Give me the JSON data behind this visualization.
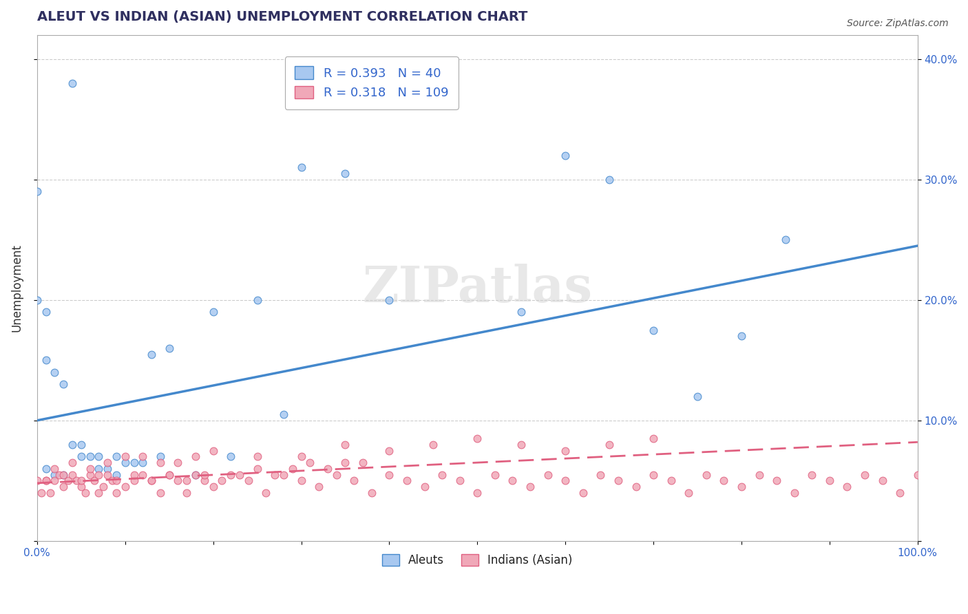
{
  "title": "ALEUT VS INDIAN (ASIAN) UNEMPLOYMENT CORRELATION CHART",
  "source": "Source: ZipAtlas.com",
  "xlabel": "",
  "ylabel": "Unemployment",
  "xlim": [
    0,
    1.0
  ],
  "ylim": [
    0,
    0.42
  ],
  "xticks": [
    0.0,
    0.1,
    0.2,
    0.3,
    0.4,
    0.5,
    0.6,
    0.7,
    0.8,
    0.9,
    1.0
  ],
  "xticklabels": [
    "0.0%",
    "",
    "",
    "",
    "",
    "",
    "",
    "",
    "",
    "",
    "100.0%"
  ],
  "yticks": [
    0.0,
    0.1,
    0.2,
    0.3,
    0.4
  ],
  "yticklabels": [
    "",
    "10.0%",
    "20.0%",
    "30.0%",
    "40.0%"
  ],
  "aleut_R": 0.393,
  "aleut_N": 40,
  "indian_R": 0.318,
  "indian_N": 109,
  "aleut_color": "#a8c8f0",
  "indian_color": "#f0a8b8",
  "aleut_line_color": "#4488cc",
  "indian_line_color": "#e06080",
  "background_color": "#ffffff",
  "grid_color": "#cccccc",
  "title_color": "#303060",
  "legend_text_color": "#3366cc",
  "watermark_text": "ZIPatlas",
  "aleut_scatter_x": [
    0.04,
    0.0,
    0.0,
    0.01,
    0.01,
    0.02,
    0.03,
    0.04,
    0.05,
    0.06,
    0.07,
    0.08,
    0.09,
    0.1,
    0.11,
    0.12,
    0.13,
    0.15,
    0.2,
    0.25,
    0.3,
    0.35,
    0.4,
    0.55,
    0.6,
    0.65,
    0.7,
    0.75,
    0.8,
    0.85,
    0.01,
    0.02,
    0.03,
    0.05,
    0.07,
    0.09,
    0.14,
    0.18,
    0.22,
    0.28
  ],
  "aleut_scatter_y": [
    0.38,
    0.29,
    0.2,
    0.19,
    0.15,
    0.14,
    0.13,
    0.08,
    0.07,
    0.07,
    0.06,
    0.06,
    0.07,
    0.065,
    0.065,
    0.065,
    0.155,
    0.16,
    0.19,
    0.2,
    0.31,
    0.305,
    0.2,
    0.19,
    0.32,
    0.3,
    0.175,
    0.12,
    0.17,
    0.25,
    0.06,
    0.055,
    0.055,
    0.08,
    0.07,
    0.055,
    0.07,
    0.055,
    0.07,
    0.105
  ],
  "indian_scatter_x": [
    0.0,
    0.005,
    0.01,
    0.015,
    0.02,
    0.025,
    0.03,
    0.035,
    0.04,
    0.045,
    0.05,
    0.055,
    0.06,
    0.065,
    0.07,
    0.075,
    0.08,
    0.085,
    0.09,
    0.1,
    0.11,
    0.12,
    0.13,
    0.14,
    0.15,
    0.16,
    0.17,
    0.18,
    0.19,
    0.2,
    0.22,
    0.24,
    0.26,
    0.28,
    0.3,
    0.32,
    0.34,
    0.36,
    0.38,
    0.4,
    0.42,
    0.44,
    0.46,
    0.48,
    0.5,
    0.52,
    0.54,
    0.56,
    0.58,
    0.6,
    0.62,
    0.64,
    0.66,
    0.68,
    0.7,
    0.72,
    0.74,
    0.76,
    0.78,
    0.8,
    0.82,
    0.84,
    0.86,
    0.88,
    0.9,
    0.92,
    0.94,
    0.96,
    0.98,
    1.0,
    0.02,
    0.04,
    0.06,
    0.08,
    0.1,
    0.12,
    0.14,
    0.16,
    0.18,
    0.2,
    0.25,
    0.3,
    0.35,
    0.4,
    0.45,
    0.5,
    0.55,
    0.6,
    0.65,
    0.7,
    0.01,
    0.03,
    0.05,
    0.07,
    0.09,
    0.11,
    0.13,
    0.15,
    0.17,
    0.19,
    0.21,
    0.23,
    0.25,
    0.27,
    0.29,
    0.31,
    0.33,
    0.35,
    0.37
  ],
  "indian_scatter_y": [
    0.05,
    0.04,
    0.05,
    0.04,
    0.05,
    0.055,
    0.045,
    0.05,
    0.055,
    0.05,
    0.045,
    0.04,
    0.055,
    0.05,
    0.04,
    0.045,
    0.055,
    0.05,
    0.04,
    0.045,
    0.05,
    0.055,
    0.05,
    0.04,
    0.055,
    0.05,
    0.04,
    0.055,
    0.05,
    0.045,
    0.055,
    0.05,
    0.04,
    0.055,
    0.05,
    0.045,
    0.055,
    0.05,
    0.04,
    0.055,
    0.05,
    0.045,
    0.055,
    0.05,
    0.04,
    0.055,
    0.05,
    0.045,
    0.055,
    0.05,
    0.04,
    0.055,
    0.05,
    0.045,
    0.055,
    0.05,
    0.04,
    0.055,
    0.05,
    0.045,
    0.055,
    0.05,
    0.04,
    0.055,
    0.05,
    0.045,
    0.055,
    0.05,
    0.04,
    0.055,
    0.06,
    0.065,
    0.06,
    0.065,
    0.07,
    0.07,
    0.065,
    0.065,
    0.07,
    0.075,
    0.07,
    0.07,
    0.08,
    0.075,
    0.08,
    0.085,
    0.08,
    0.075,
    0.08,
    0.085,
    0.05,
    0.055,
    0.05,
    0.055,
    0.05,
    0.055,
    0.05,
    0.055,
    0.05,
    0.055,
    0.05,
    0.055,
    0.06,
    0.055,
    0.06,
    0.065,
    0.06,
    0.065,
    0.065
  ],
  "aleut_line_x0": 0.0,
  "aleut_line_x1": 1.0,
  "aleut_line_y0": 0.1,
  "aleut_line_y1": 0.245,
  "indian_line_x0": 0.0,
  "indian_line_x1": 1.0,
  "indian_line_y0": 0.048,
  "indian_line_y1": 0.082,
  "indian_line_dash": [
    8,
    4
  ]
}
